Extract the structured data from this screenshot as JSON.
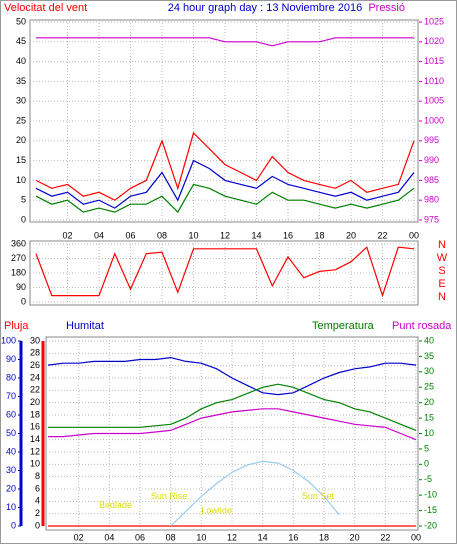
{
  "chart_data": [
    {
      "type": "line",
      "title": "24 hour graph day : 13 Noviembre 2016",
      "ylabel": "Velocitat del vent",
      "y2label": "Pressió",
      "x": [
        0,
        1,
        2,
        3,
        4,
        5,
        6,
        7,
        8,
        9,
        10,
        11,
        12,
        13,
        14,
        15,
        16,
        17,
        18,
        19,
        20,
        21,
        22,
        23,
        24
      ],
      "xlim": [
        0,
        24
      ],
      "xticks": [
        {
          "value": 2,
          "label": "02"
        },
        {
          "value": 4,
          "label": "04"
        },
        {
          "value": 6,
          "label": "06"
        },
        {
          "value": 8,
          "label": "08"
        },
        10,
        12,
        14,
        16,
        18,
        20,
        22,
        {
          "value": 24,
          "label": "00"
        }
      ],
      "ylim": [
        0,
        50
      ],
      "yticks": [
        0,
        5,
        10,
        15,
        20,
        25,
        30,
        35,
        40,
        45,
        50
      ],
      "y2lim": [
        975,
        1025
      ],
      "y2ticks": [
        975,
        980,
        985,
        990,
        995,
        1000,
        1005,
        1010,
        1015,
        1020,
        1025
      ],
      "grid": true,
      "series": [
        {
          "color": "#ff0000",
          "values": [
            10,
            8,
            9,
            6,
            7,
            5,
            8,
            10,
            20,
            8,
            22,
            18,
            14,
            12,
            10,
            16,
            12,
            10,
            9,
            8,
            10,
            7,
            8,
            9,
            20
          ]
        },
        {
          "color": "#0000cc",
          "values": [
            8,
            6,
            7,
            4,
            5,
            3,
            6,
            7,
            12,
            5,
            15,
            13,
            10,
            9,
            8,
            11,
            9,
            8,
            7,
            6,
            7,
            5,
            6,
            7,
            12
          ]
        },
        {
          "color": "#008000",
          "values": [
            6,
            4,
            5,
            2,
            3,
            2,
            4,
            4,
            6,
            2,
            9,
            8,
            6,
            5,
            4,
            7,
            5,
            5,
            4,
            3,
            4,
            3,
            4,
            5,
            8
          ]
        },
        {
          "color": "#cc00cc",
          "axis": "y2",
          "values": [
            1021,
            1021,
            1021,
            1021,
            1021,
            1021,
            1021,
            1021,
            1021,
            1021,
            1021,
            1021,
            1020,
            1020,
            1020,
            1019,
            1020,
            1020,
            1020,
            1021,
            1021,
            1021,
            1021,
            1021,
            1021
          ]
        }
      ]
    },
    {
      "type": "line",
      "x": [
        0,
        1,
        2,
        3,
        4,
        5,
        6,
        7,
        8,
        9,
        10,
        11,
        12,
        13,
        14,
        15,
        16,
        17,
        18,
        19,
        20,
        21,
        22,
        23,
        24
      ],
      "xlim": [
        0,
        24
      ],
      "ylim": [
        0,
        360
      ],
      "yticks": [
        0,
        90,
        180,
        270,
        360
      ],
      "direction_labels": [
        "N",
        "W",
        "S",
        "E",
        "N"
      ],
      "grid": true,
      "series": [
        {
          "color": "#ff0000",
          "values": [
            300,
            40,
            40,
            40,
            40,
            300,
            80,
            300,
            310,
            60,
            330,
            330,
            330,
            330,
            330,
            100,
            280,
            150,
            190,
            200,
            250,
            340,
            40,
            340,
            330
          ]
        }
      ]
    },
    {
      "type": "line",
      "rain_label": "Pluja",
      "humidity_label": "Humitat",
      "temp_label": "Temperatura",
      "dew_label": "Punt rosada",
      "x": [
        0,
        1,
        2,
        3,
        4,
        5,
        6,
        7,
        8,
        9,
        10,
        11,
        12,
        13,
        14,
        15,
        16,
        17,
        18,
        19,
        20,
        21,
        22,
        23,
        24
      ],
      "xlim": [
        0,
        24
      ],
      "xticks": [
        {
          "value": 2,
          "label": "02"
        },
        {
          "value": 4,
          "label": "04"
        },
        {
          "value": 6,
          "label": "06"
        },
        {
          "value": 8,
          "label": "08"
        },
        10,
        12,
        14,
        16,
        18,
        20,
        22,
        {
          "value": 24,
          "label": "00"
        }
      ],
      "ylim": [
        0,
        100
      ],
      "yticks": [
        0,
        10,
        20,
        30,
        40,
        50,
        60,
        70,
        80,
        90,
        100
      ],
      "rainlim": [
        0,
        30
      ],
      "rainticks": [
        0,
        2,
        4,
        6,
        8,
        10,
        12,
        14,
        16,
        18,
        20,
        22,
        24,
        26,
        28,
        30
      ],
      "y2lim": [
        -20,
        40
      ],
      "y2ticks": [
        -20,
        -15,
        -10,
        -5,
        0,
        5,
        10,
        15,
        20,
        25,
        30,
        35,
        40
      ],
      "grid": true,
      "series": [
        {
          "color": "#ff0000",
          "axis": "rain",
          "values": [
            0,
            0,
            0,
            0,
            0,
            0,
            0,
            0,
            0,
            0,
            0,
            0,
            0,
            0,
            0,
            0,
            0,
            0,
            0,
            0,
            0,
            0,
            0,
            0,
            0
          ]
        },
        {
          "color": "#0000cc",
          "axis": "y",
          "values": [
            87,
            88,
            88,
            89,
            89,
            89,
            90,
            90,
            91,
            89,
            88,
            85,
            80,
            76,
            72,
            71,
            72,
            76,
            80,
            83,
            85,
            86,
            88,
            88,
            87
          ]
        },
        {
          "color": "#008000",
          "axis": "y2",
          "values": [
            12,
            12,
            12,
            12,
            12,
            12,
            12,
            12.5,
            13,
            15,
            18,
            20,
            21,
            23,
            25,
            26,
            25,
            23,
            21,
            20,
            18,
            17,
            15,
            13,
            11
          ]
        },
        {
          "color": "#cc00cc",
          "axis": "y2",
          "values": [
            9,
            9,
            9.5,
            10,
            10,
            10,
            10,
            10.5,
            11,
            13,
            15,
            16,
            17,
            17.5,
            18,
            18,
            17,
            16,
            15,
            14,
            13,
            12.5,
            12,
            10,
            8
          ]
        },
        {
          "color": "#99ccee",
          "axis": "y",
          "values": [
            null,
            null,
            null,
            null,
            null,
            null,
            null,
            null,
            0,
            8,
            16,
            23,
            29,
            33,
            35,
            34,
            30,
            24,
            16,
            6,
            null,
            null,
            null,
            null,
            null
          ]
        }
      ],
      "annotations": [
        {
          "text": "Birdlade",
          "x": 4.4,
          "y": 11
        },
        {
          "text": "Sun Rise",
          "x": 7.9,
          "y": 16
        },
        {
          "text": "Lowlide",
          "x": 11,
          "y": 8
        },
        {
          "text": "Sun Set",
          "x": 17.6,
          "y": 16
        }
      ]
    }
  ]
}
